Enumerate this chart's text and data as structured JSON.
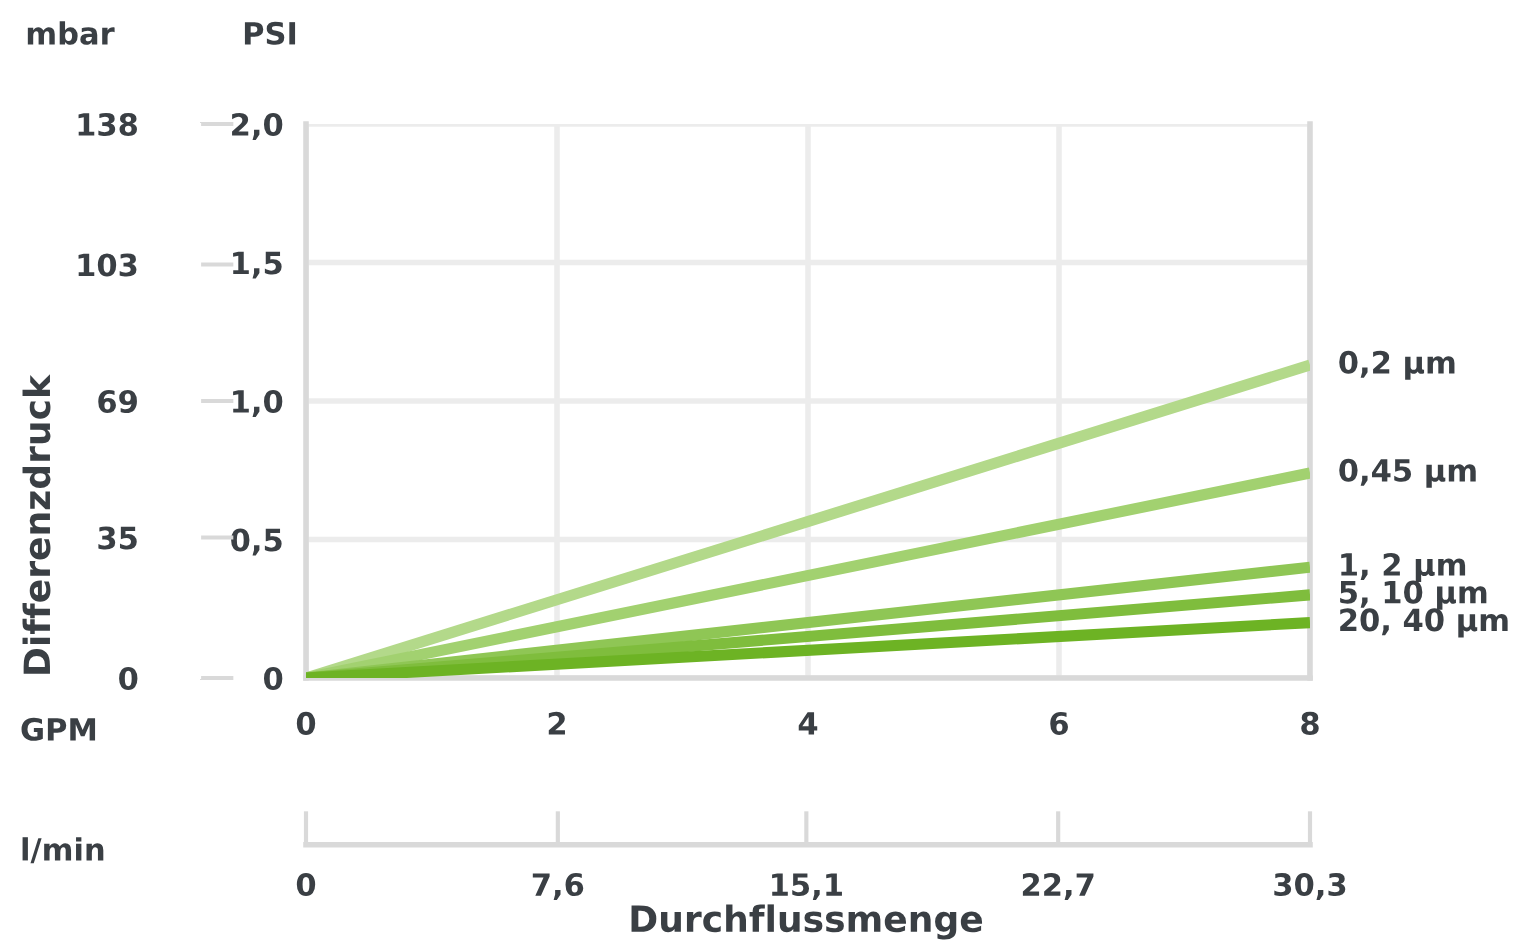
{
  "chart_data": {
    "type": "line",
    "x": [
      0,
      8
    ],
    "series": [
      {
        "name": "0,2 µm",
        "color": "#b3d98a",
        "values": [
          0,
          1.13
        ]
      },
      {
        "name": "0,45 µm",
        "color": "#a2d170",
        "values": [
          0,
          0.74
        ]
      },
      {
        "name": "1, 2 µm",
        "color": "#8fc655",
        "values": [
          0,
          0.4
        ]
      },
      {
        "name": "5, 10 µm",
        "color": "#7fbd3d",
        "values": [
          0,
          0.3
        ]
      },
      {
        "name": "20, 40 µm",
        "color": "#6db324",
        "values": [
          0,
          0.2
        ]
      }
    ],
    "xlabel": "GPM",
    "x2label": "l/min",
    "ylabel": "PSI",
    "y2label": "mbar",
    "xlim": [
      0,
      8
    ],
    "xticks": [
      0,
      2,
      4,
      6,
      8
    ],
    "x2lim": [
      0,
      30.3
    ],
    "x2ticks": [
      0,
      {
        "value": 7.6,
        "label": "7,6"
      },
      {
        "value": 15.1,
        "label": "15,1"
      },
      {
        "value": 22.7,
        "label": "22,7"
      },
      {
        "value": 30.3,
        "label": "30,3"
      }
    ],
    "ylim": [
      0,
      2
    ],
    "yticks": [
      0,
      {
        "value": 0.5,
        "label": "0,5"
      },
      {
        "value": 1,
        "label": "1,0"
      },
      {
        "value": 1.5,
        "label": "1,5"
      },
      {
        "value": 2,
        "label": "2,0"
      }
    ],
    "y2lim": [
      0,
      138
    ],
    "y2ticks": [
      0,
      35,
      69,
      103,
      138
    ],
    "annotations": [
      "Differenzdruck",
      "Durchflussmenge"
    ],
    "grid": true,
    "legend": false,
    "marker": "none",
    "line_style": "solid"
  }
}
